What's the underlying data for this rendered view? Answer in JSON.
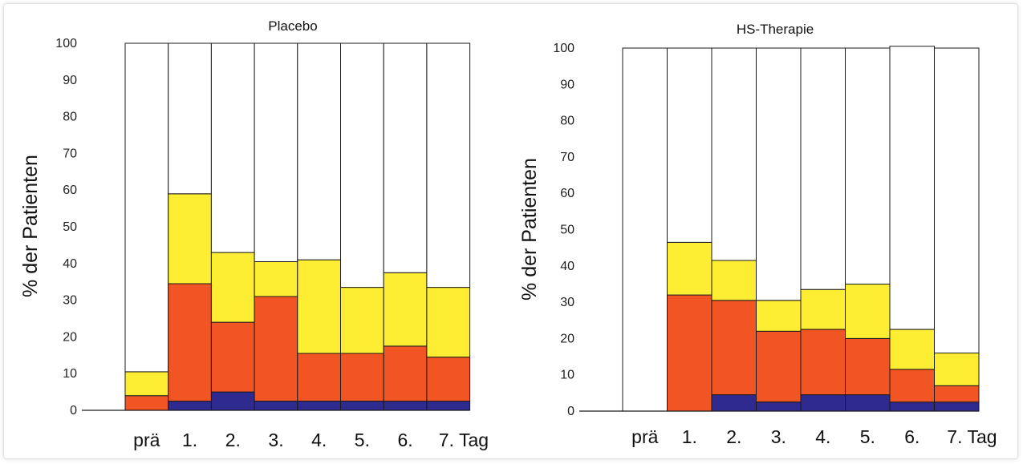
{
  "colors": {
    "none": "#ffffff",
    "low": "#2e2a90",
    "mid": "#f05523",
    "high": "#fdee33",
    "stroke": "#1a1a1a"
  },
  "chart_data": [
    {
      "type": "bar",
      "stacked": true,
      "title": "Placebo",
      "ylabel": "% der Patienten",
      "ylim": [
        0,
        100
      ],
      "yticks": [
        0,
        10,
        20,
        30,
        40,
        50,
        60,
        70,
        80,
        90,
        100
      ],
      "categories": [
        "prä",
        "1.",
        "2.",
        "3.",
        "4.",
        "5.",
        "6.",
        "7. Tag"
      ],
      "series": [
        {
          "color_key": "low",
          "values": [
            0,
            2.5,
            5,
            2.5,
            2.5,
            2.5,
            2.5,
            2.5
          ]
        },
        {
          "color_key": "mid",
          "values": [
            4,
            32,
            19,
            28.5,
            13,
            13,
            15,
            12
          ]
        },
        {
          "color_key": "high",
          "values": [
            6.5,
            24.5,
            19,
            9.5,
            25.5,
            18,
            20,
            19
          ]
        },
        {
          "color_key": "none",
          "values": [
            89.5,
            41,
            57,
            59.5,
            59,
            66.5,
            62.5,
            66.5
          ]
        }
      ]
    },
    {
      "type": "bar",
      "stacked": true,
      "title": "HS-Therapie",
      "ylabel": "% der Patienten",
      "ylim": [
        0,
        100
      ],
      "yticks": [
        0,
        10,
        20,
        30,
        40,
        50,
        60,
        70,
        80,
        90,
        100
      ],
      "categories": [
        "prä",
        "1.",
        "2.",
        "3.",
        "4.",
        "5.",
        "6.",
        "7. Tag"
      ],
      "series": [
        {
          "color_key": "low",
          "values": [
            0,
            0,
            4.5,
            2.5,
            4.5,
            4.5,
            2.5,
            2.5
          ]
        },
        {
          "color_key": "mid",
          "values": [
            0,
            32,
            26,
            19.5,
            18,
            15.5,
            9,
            4.5
          ]
        },
        {
          "color_key": "high",
          "values": [
            0,
            14.5,
            11,
            8.5,
            11,
            15,
            11,
            9
          ]
        },
        {
          "color_key": "none",
          "values": [
            100,
            53.5,
            58.5,
            69.5,
            66.5,
            65,
            78,
            84
          ]
        }
      ]
    }
  ]
}
